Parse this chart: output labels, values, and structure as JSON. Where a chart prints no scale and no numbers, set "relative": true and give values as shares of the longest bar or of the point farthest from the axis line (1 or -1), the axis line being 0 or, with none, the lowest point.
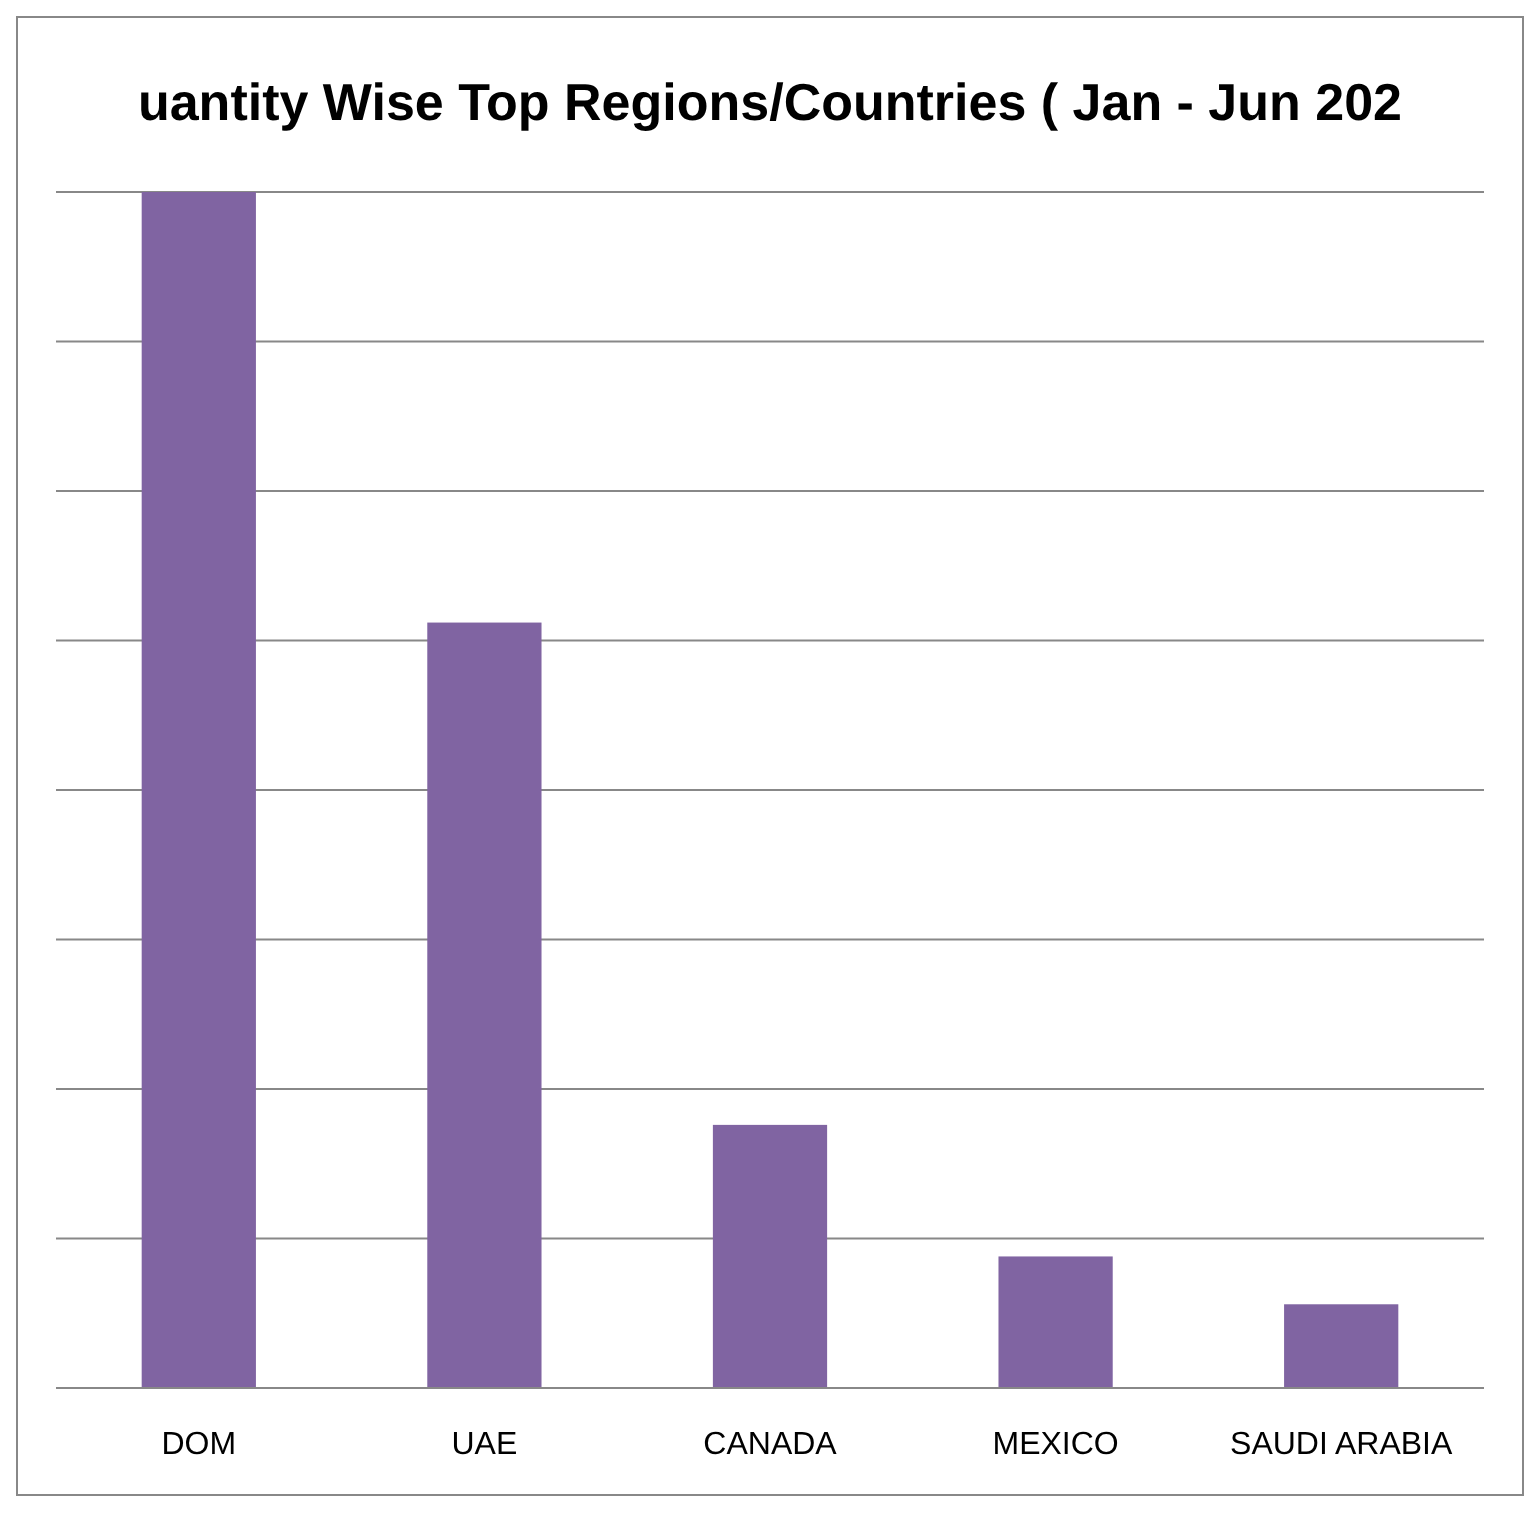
{
  "chart_data": {
    "type": "bar",
    "title": "uantity Wise Top Regions/Countries ( Jan - Jun 202",
    "categories": [
      "DOM",
      "UAE",
      "CANADA",
      "MEXICO",
      "SAUDI ARABIA"
    ],
    "values": [
      1,
      0.64,
      0.22,
      0.11,
      0.07
    ],
    "color": "#8064a2",
    "relative": true,
    "grid": true
  }
}
